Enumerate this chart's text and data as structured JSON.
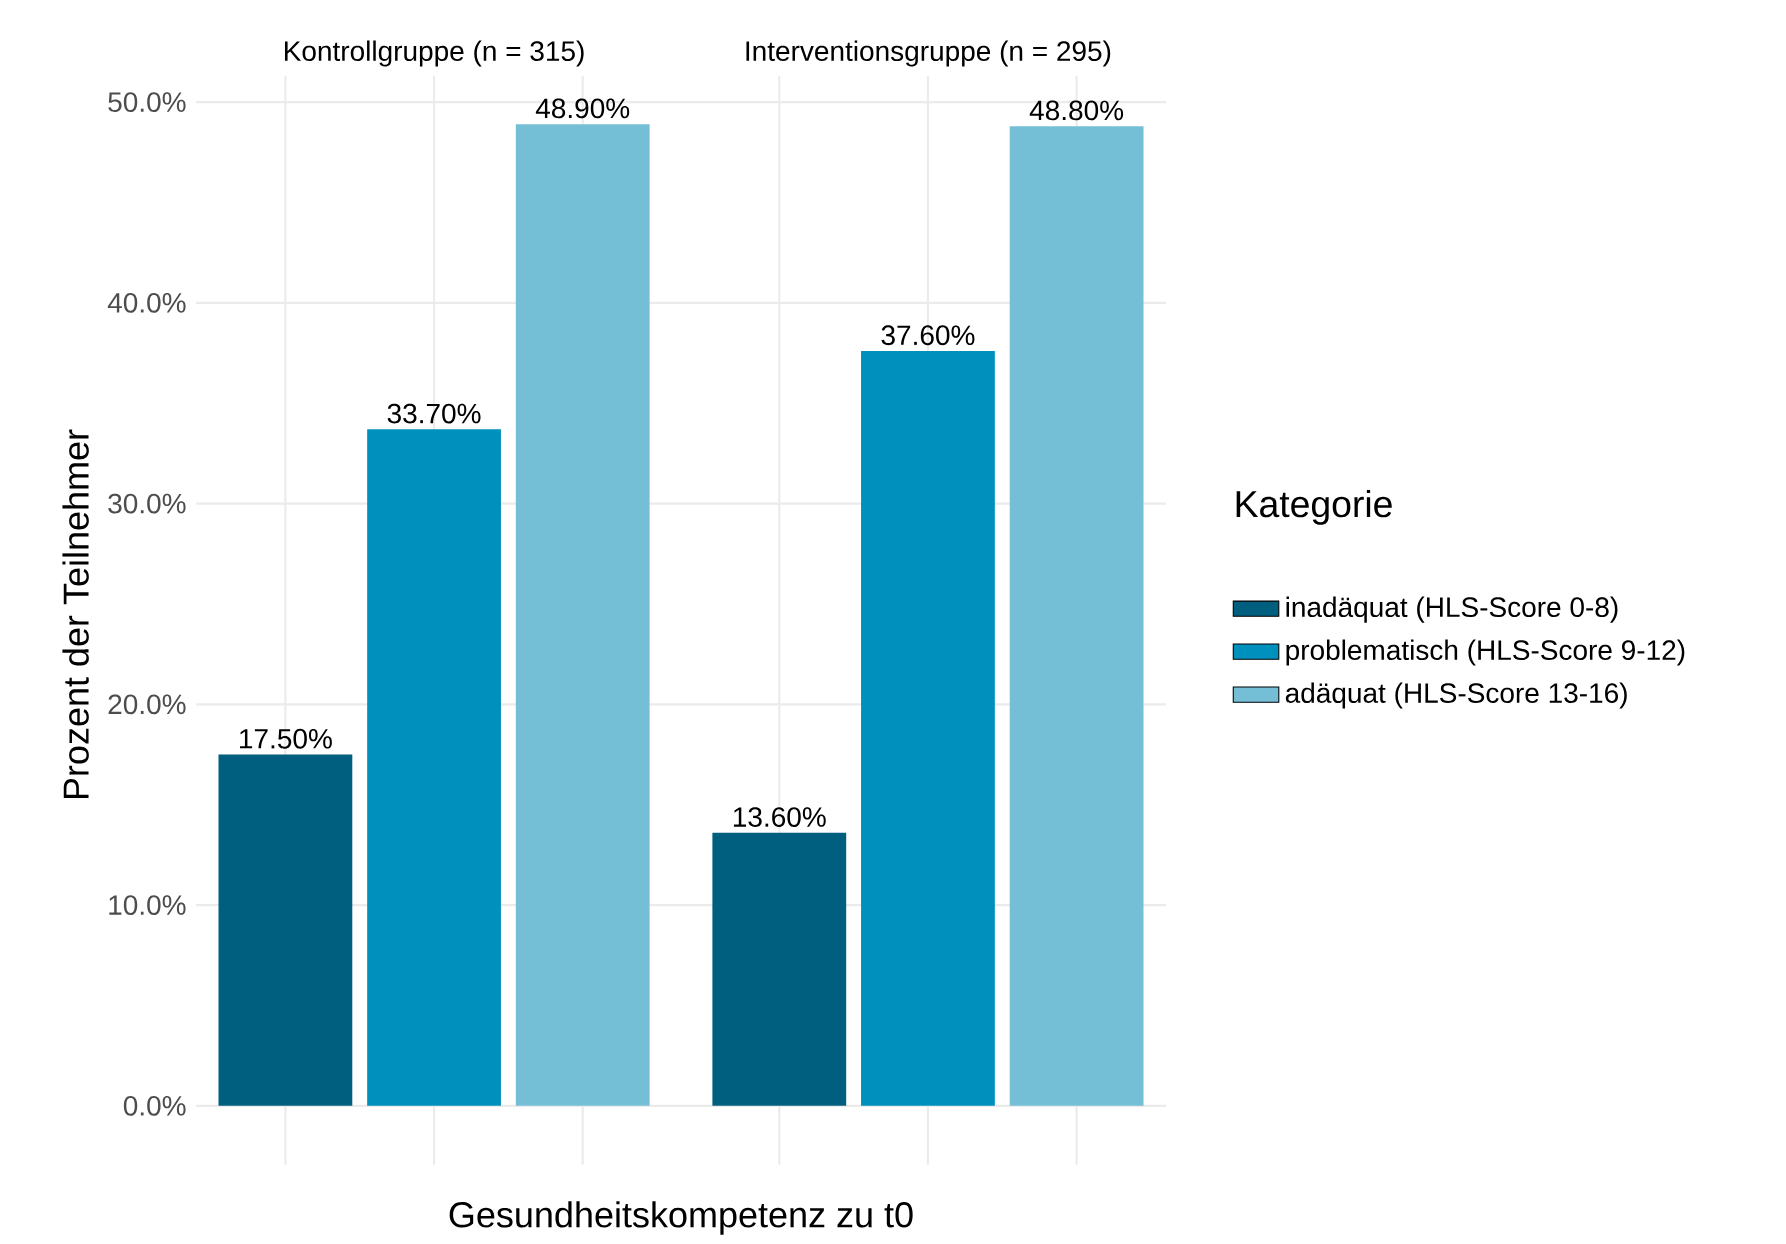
{
  "chart_data": {
    "type": "bar",
    "xlabel": "Gesundheitskompetenz zu t0",
    "ylabel": "Prozent der Teilnehmer",
    "legend_title": "Kategorie",
    "categories": [
      "Kontrollgruppe (n = 315)",
      "Interventionsgruppe (n = 295)"
    ],
    "series": [
      {
        "name": "inadäquat (HLS-Score 0-8)",
        "color": "#005f7f",
        "values": [
          17.5,
          13.6
        ],
        "value_labels": [
          "17.50%",
          "13.60%"
        ]
      },
      {
        "name": "problematisch (HLS-Score 9-12)",
        "color": "#0090be",
        "values": [
          33.7,
          37.6
        ],
        "value_labels": [
          "33.70%",
          "37.60%"
        ]
      },
      {
        "name": "adäquat (HLS-Score 13-16)",
        "color": "#74bed6",
        "values": [
          48.9,
          48.8
        ],
        "value_labels": [
          "48.90%",
          "48.80%"
        ]
      }
    ],
    "ylim": [
      -2.4,
      51.3
    ],
    "yticks": [
      {
        "value": 0,
        "label": "0.0%"
      },
      {
        "value": 10,
        "label": "10.0%"
      },
      {
        "value": 20,
        "label": "20.0%"
      },
      {
        "value": 30,
        "label": "30.0%"
      },
      {
        "value": 40,
        "label": "40.0%"
      },
      {
        "value": 50,
        "label": "50.0%"
      }
    ],
    "grid": true,
    "legend": "right"
  }
}
